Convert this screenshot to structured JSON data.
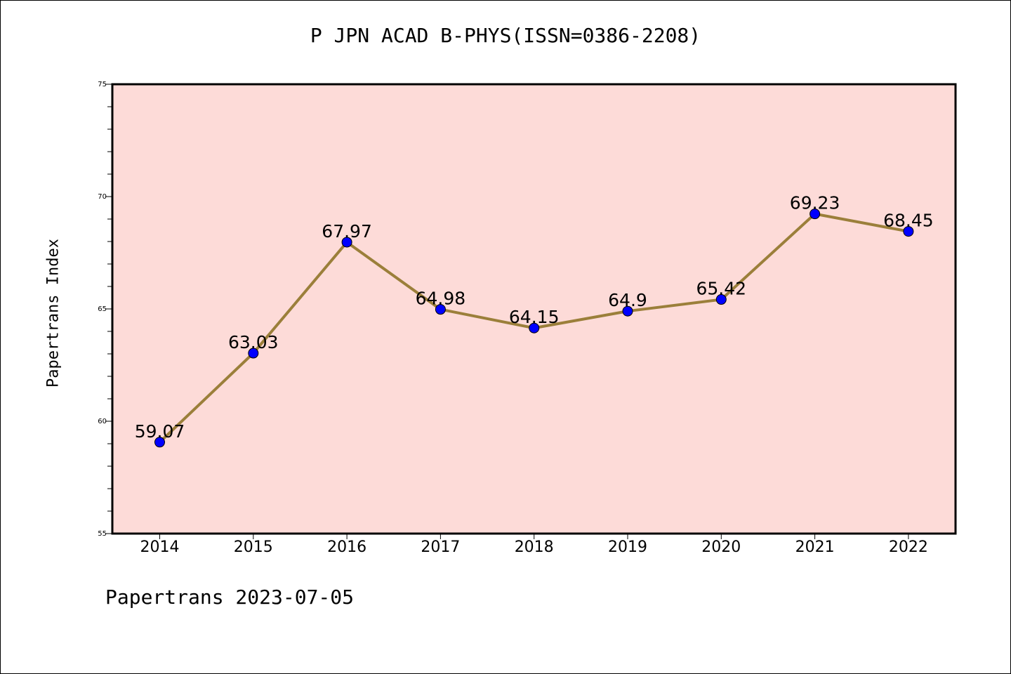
{
  "chart_data": {
    "type": "line",
    "title": "P JPN ACAD B-PHYS(ISSN=0386-2208)",
    "xlabel": "",
    "ylabel": "Papertrans Index",
    "categories": [
      "2014",
      "2015",
      "2016",
      "2017",
      "2018",
      "2019",
      "2020",
      "2021",
      "2022"
    ],
    "values": [
      59.07,
      63.03,
      67.97,
      64.98,
      64.15,
      64.9,
      65.42,
      69.23,
      68.45
    ],
    "data_labels": [
      "59.07",
      "63.03",
      "67.97",
      "64.98",
      "64.15",
      "64.9",
      "65.42",
      "69.23",
      "68.45"
    ],
    "ylim": [
      55,
      75
    ],
    "y_major_ticks": [
      55,
      60,
      65,
      70,
      75
    ],
    "y_major_tick_labels": [
      "55",
      "60",
      "65",
      "70",
      "75"
    ],
    "y_minor_step": 1,
    "grid": false,
    "colors": {
      "plot_background": "#fddbd8",
      "line": "#9b7f3a",
      "marker": "#0000ff"
    }
  },
  "footer": {
    "text": "Papertrans 2023-07-05"
  }
}
